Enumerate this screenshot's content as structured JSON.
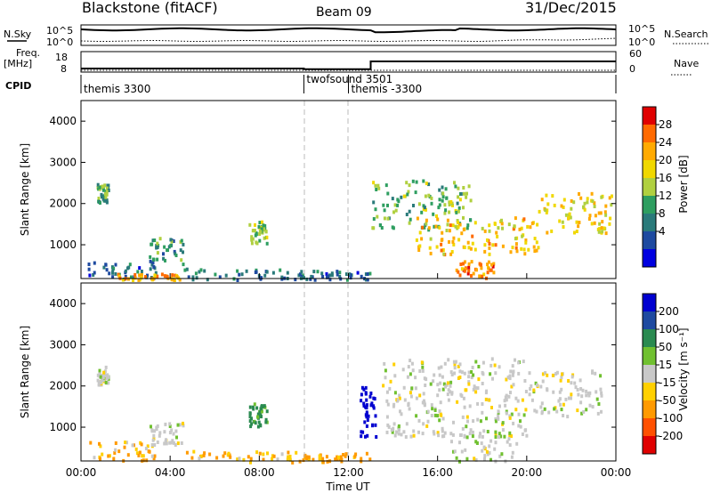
{
  "header": {
    "title": "Blackstone (fitACF)",
    "beam": "Beam 09",
    "date": "31/Dec/2015"
  },
  "status_panels": {
    "nsky_label": "N.Sky",
    "nsearch_label": "N.Search",
    "nsky_ticks": [
      "10^5",
      "10^0"
    ],
    "freq_label": "Freq.",
    "freq_unit": "[MHz]",
    "freq_ticks": [
      "18",
      "8"
    ],
    "nave_label": "Nave",
    "nave_ticks": [
      "60",
      "0"
    ],
    "cpid_label": "CPID",
    "cpid_segments": [
      {
        "name": "themis 3300",
        "start_h": 0,
        "end_h": 10
      },
      {
        "name": "twofsound 3501",
        "start_h": 10,
        "end_h": 12
      },
      {
        "name": "themis -3300",
        "start_h": 12,
        "end_h": 24
      }
    ],
    "freq_steps": [
      {
        "start_h": 0,
        "end_h": 10,
        "mhz": 10.5
      },
      {
        "start_h": 10,
        "end_h": 13,
        "mhz": 10.0
      },
      {
        "start_h": 13,
        "end_h": 24,
        "mhz": 15.5
      }
    ]
  },
  "chart_data": [
    {
      "type": "heatmap",
      "panel": "power",
      "ylabel": "Slant Range [km]",
      "colorbar_label": "Power [dB]",
      "colorbar_ticks": [
        "28",
        "24",
        "20",
        "16",
        "12",
        "8",
        "4"
      ],
      "colorbar_colors": [
        "#e00000",
        "#ff6a00",
        "#ffaa00",
        "#f0d800",
        "#b0d040",
        "#2e9e60",
        "#2a7a7a",
        "#1e4aa0",
        "#0000e0"
      ],
      "ylim": [
        180,
        4500
      ],
      "yticks": [
        1000,
        2000,
        3000,
        4000
      ],
      "xlim_hours": [
        0,
        24
      ],
      "echo_regions": [
        {
          "x": [
            0.3,
            3.5
          ],
          "y": [
            200,
            600
          ],
          "dB": 6
        },
        {
          "x": [
            3.0,
            4.6
          ],
          "y": [
            550,
            1200
          ],
          "dB": 10
        },
        {
          "x": [
            1.3,
            4.4
          ],
          "y": [
            180,
            330
          ],
          "dB": 24
        },
        {
          "x": [
            0.7,
            1.2
          ],
          "y": [
            2050,
            2500
          ],
          "dB": 12
        },
        {
          "x": [
            7.5,
            8.3
          ],
          "y": [
            1050,
            1600
          ],
          "dB": 16
        },
        {
          "x": [
            4.5,
            9.8
          ],
          "y": [
            180,
            450
          ],
          "dB": 8
        },
        {
          "x": [
            9.8,
            13.0
          ],
          "y": [
            180,
            400
          ],
          "dB": 6
        },
        {
          "x": [
            13.0,
            17.5
          ],
          "y": [
            1400,
            2600
          ],
          "dB": 14
        },
        {
          "x": [
            15.0,
            20.5
          ],
          "y": [
            800,
            1700
          ],
          "dB": 22
        },
        {
          "x": [
            16.8,
            18.5
          ],
          "y": [
            200,
            650
          ],
          "dB": 26
        },
        {
          "x": [
            20.5,
            23.8
          ],
          "y": [
            1300,
            2300
          ],
          "dB": 20
        }
      ]
    },
    {
      "type": "heatmap",
      "panel": "velocity",
      "ylabel": "Slant Range [km]",
      "xlabel": "Time UT",
      "colorbar_label": "Velocity [m s⁻¹]",
      "colorbar_ticks": [
        "200",
        "100",
        "50",
        "15",
        "-15",
        "-50",
        "-100",
        "-200"
      ],
      "colorbar_colors": [
        "#0000d0",
        "#1e4aa0",
        "#2a8a50",
        "#70c030",
        "#c8c8c8",
        "#ffd000",
        "#ff9a00",
        "#ff5000",
        "#e00000"
      ],
      "ylim": [
        180,
        4500
      ],
      "yticks": [
        1000,
        2000,
        3000,
        4000
      ],
      "xlim_hours": [
        0,
        24
      ],
      "xtick_labels": [
        "00:00",
        "04:00",
        "08:00",
        "12:00",
        "16:00",
        "20:00",
        "00:00"
      ],
      "echo_regions": [
        {
          "x": [
            0.3,
            3.5
          ],
          "y": [
            200,
            700
          ],
          "v": -30
        },
        {
          "x": [
            3.0,
            4.6
          ],
          "y": [
            600,
            1150
          ],
          "v": 0
        },
        {
          "x": [
            0.7,
            1.2
          ],
          "y": [
            2050,
            2500
          ],
          "v": 0
        },
        {
          "x": [
            7.5,
            8.3
          ],
          "y": [
            1050,
            1600
          ],
          "v": 40
        },
        {
          "x": [
            4.5,
            9.8
          ],
          "y": [
            180,
            450
          ],
          "v": -30
        },
        {
          "x": [
            9.8,
            13.0
          ],
          "y": [
            180,
            400
          ],
          "v": -40
        },
        {
          "x": [
            13.5,
            20.0
          ],
          "y": [
            800,
            2700
          ],
          "v": 0
        },
        {
          "x": [
            16.5,
            19.5
          ],
          "y": [
            200,
            900
          ],
          "v": 0
        },
        {
          "x": [
            20.0,
            23.5
          ],
          "y": [
            1300,
            2400
          ],
          "v": 0
        },
        {
          "x": [
            12.5,
            13.2
          ],
          "y": [
            800,
            2000
          ],
          "v": 180
        }
      ]
    }
  ]
}
